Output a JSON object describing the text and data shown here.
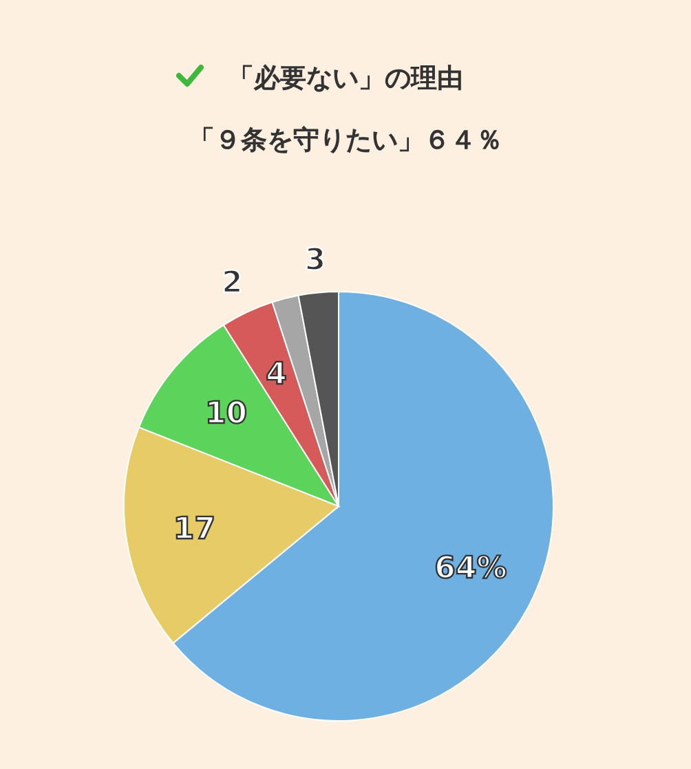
{
  "chart_data": {
    "type": "pie",
    "title": "「必要ない」の理由",
    "subtitle": "「９条を守りたい」６４％",
    "categories": [
      null,
      null,
      null,
      null,
      null,
      null
    ],
    "values": [
      64,
      17,
      10,
      4,
      2,
      3
    ],
    "colors": [
      "#6fb0e3",
      "#e6cb66",
      "#5cd35a",
      "#d65a5a",
      "#a6a6a6",
      "#555555"
    ],
    "value_labels": [
      "64%",
      "17",
      "10",
      "4",
      "2",
      "3"
    ]
  }
}
